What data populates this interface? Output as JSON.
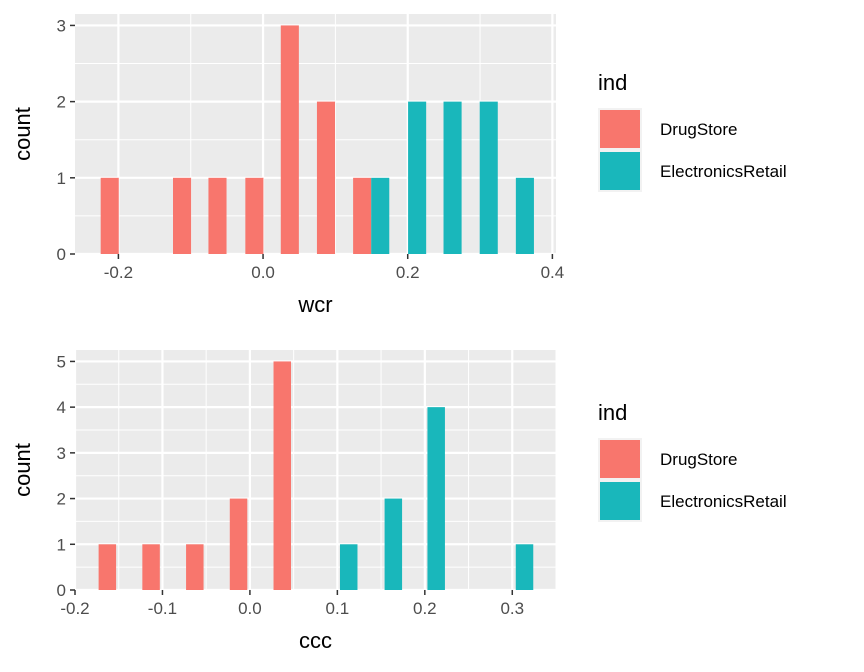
{
  "colors": {
    "panel_bg": "#ebebeb",
    "grid": "#ffffff",
    "tick_text": "#4d4d4d",
    "tick_mark": "#333333"
  },
  "chart_data": [
    {
      "type": "bar",
      "xlabel": "wcr",
      "ylabel": "count",
      "xlim": [
        -0.26,
        0.405
      ],
      "ylim": [
        0,
        3.15
      ],
      "x_ticks": [
        "-0.2",
        "0.0",
        "0.2",
        "0.4"
      ],
      "x_tick_values": [
        -0.2,
        0.0,
        0.2,
        0.4
      ],
      "y_ticks": [
        "0",
        "1",
        "2",
        "3"
      ],
      "y_tick_values": [
        0,
        1,
        2,
        3
      ],
      "bar_width": 0.025,
      "legend": {
        "title": "ind",
        "position": "right"
      },
      "series": [
        {
          "name": "DrugStore",
          "color": "#f8766d",
          "bars": [
            {
              "x": -0.212,
              "y": 1
            },
            {
              "x": -0.112,
              "y": 1
            },
            {
              "x": -0.063,
              "y": 1
            },
            {
              "x": -0.012,
              "y": 1
            },
            {
              "x": 0.037,
              "y": 3
            },
            {
              "x": 0.087,
              "y": 2
            },
            {
              "x": 0.137,
              "y": 1
            }
          ]
        },
        {
          "name": "ElectronicsRetail",
          "color": "#19b7bb",
          "bars": [
            {
              "x": 0.162,
              "y": 1
            },
            {
              "x": 0.213,
              "y": 2
            },
            {
              "x": 0.262,
              "y": 2
            },
            {
              "x": 0.312,
              "y": 2
            },
            {
              "x": 0.362,
              "y": 1
            }
          ]
        }
      ]
    },
    {
      "type": "bar",
      "xlabel": "ccc",
      "ylabel": "count",
      "xlim": [
        -0.2,
        0.35
      ],
      "ylim": [
        0,
        5.25
      ],
      "x_ticks": [
        "-0.2",
        "-0.1",
        "0.0",
        "0.1",
        "0.2",
        "0.3"
      ],
      "x_tick_values": [
        -0.2,
        -0.1,
        0.0,
        0.1,
        0.2,
        0.3
      ],
      "y_ticks": [
        "0",
        "1",
        "2",
        "3",
        "4",
        "5"
      ],
      "y_tick_values": [
        0,
        1,
        2,
        3,
        4,
        5
      ],
      "bar_width": 0.02,
      "legend": {
        "title": "ind",
        "position": "right"
      },
      "series": [
        {
          "name": "DrugStore",
          "color": "#f8766d",
          "bars": [
            {
              "x": -0.163,
              "y": 1
            },
            {
              "x": -0.113,
              "y": 1
            },
            {
              "x": -0.063,
              "y": 1
            },
            {
              "x": -0.013,
              "y": 2
            },
            {
              "x": 0.037,
              "y": 5
            }
          ]
        },
        {
          "name": "ElectronicsRetail",
          "color": "#19b7bb",
          "bars": [
            {
              "x": 0.113,
              "y": 1
            },
            {
              "x": 0.164,
              "y": 2
            },
            {
              "x": 0.213,
              "y": 4
            },
            {
              "x": 0.314,
              "y": 1
            }
          ]
        }
      ]
    }
  ]
}
